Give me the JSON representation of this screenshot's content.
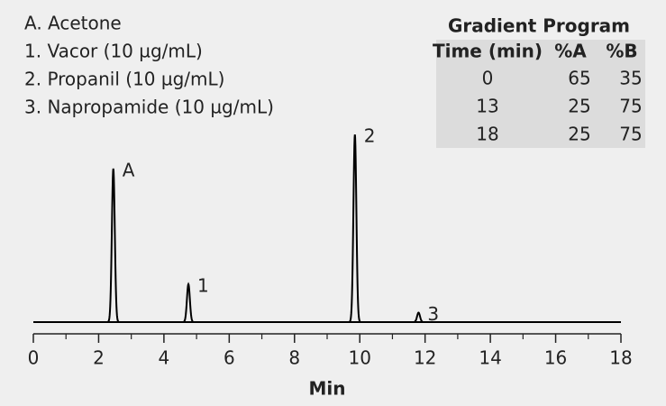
{
  "chart_data": {
    "type": "chromatogram",
    "legend": [
      "A.  Acetone",
      "1.  Vacor (10 µg/mL)",
      "2.  Propanil (10 µg/mL)",
      "3.  Napropamide (10 µg/mL)"
    ],
    "peak_labels": [
      "A",
      "1",
      "2",
      "3"
    ],
    "x": [
      2.45,
      4.75,
      9.85,
      11.8
    ],
    "values": [
      81,
      20,
      99,
      5
    ],
    "color": "#000000",
    "xlim": [
      0,
      18
    ],
    "xticks": [
      0,
      2,
      4,
      6,
      8,
      10,
      12,
      14,
      16,
      18
    ],
    "xminorticks": [
      1,
      3,
      5,
      7,
      9,
      11,
      13,
      15,
      17
    ],
    "ylim": [
      0,
      100
    ],
    "xlabel": "Min",
    "table": {
      "title": "Gradient Program",
      "columns": [
        "Time (min)",
        "%A",
        "%B"
      ],
      "rows": [
        [
          "0",
          "65",
          "35"
        ],
        [
          "13",
          "25",
          "75"
        ],
        [
          "18",
          "25",
          "75"
        ]
      ]
    }
  }
}
